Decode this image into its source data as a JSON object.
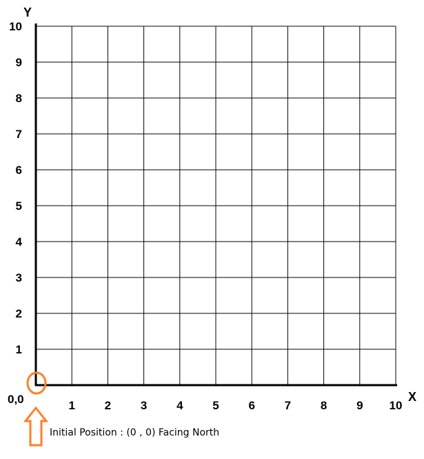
{
  "grid": {
    "x_axis_label": "X",
    "y_axis_label": "Y",
    "x_ticks": [
      "1",
      "2",
      "3",
      "4",
      "5",
      "6",
      "7",
      "8",
      "9",
      "10"
    ],
    "y_ticks": [
      "1",
      "2",
      "3",
      "4",
      "5",
      "6",
      "7",
      "8",
      "9",
      "10"
    ],
    "origin_label": "0,0",
    "x_range": [
      0,
      10
    ],
    "y_range": [
      0,
      10
    ],
    "line_color": "#000000"
  },
  "robot": {
    "position": [
      0,
      0
    ],
    "heading": "North",
    "marker_color": "#ff7f27",
    "marker_icon": "circle-icon",
    "arrow_icon": "up-arrow-icon"
  },
  "caption": {
    "text": "Initial Position : (0 , 0) Facing North"
  }
}
